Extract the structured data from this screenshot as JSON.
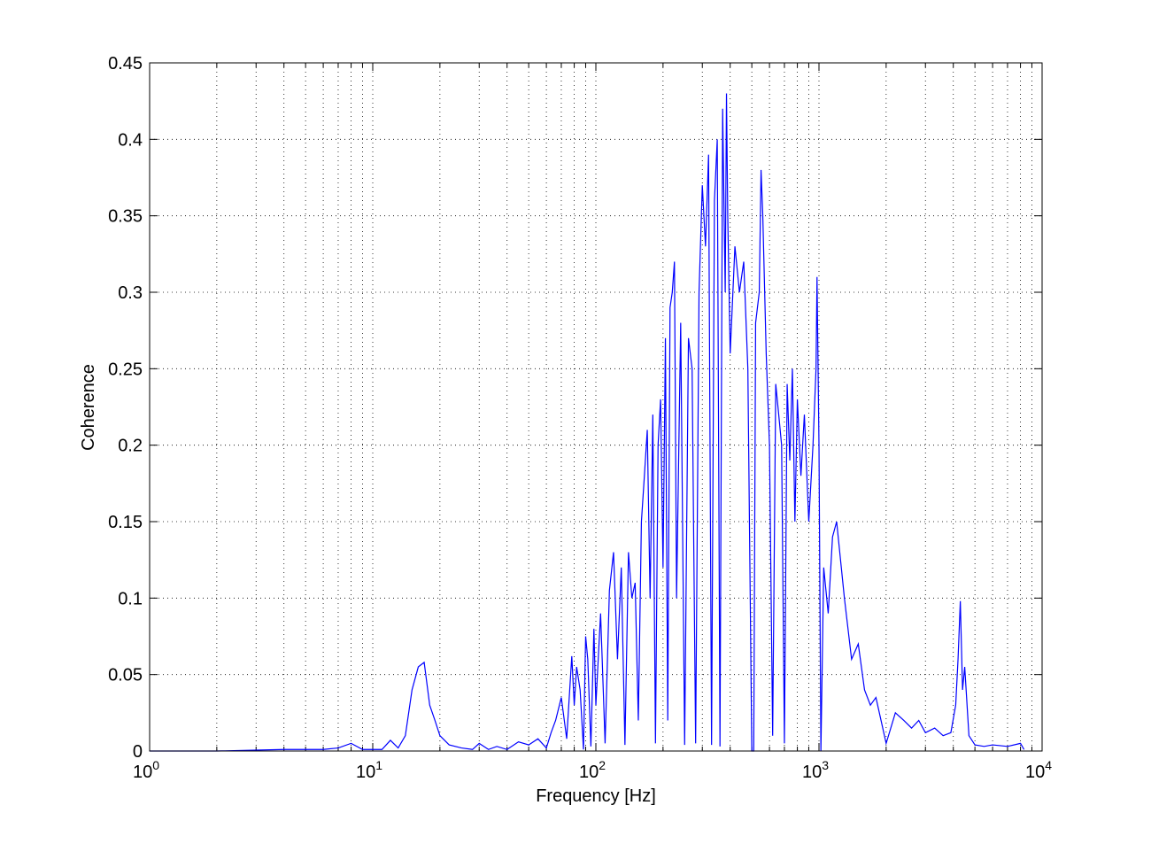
{
  "chart_data": {
    "type": "line",
    "xlabel": "Frequency [Hz]",
    "ylabel": "Coherence",
    "xscale": "log",
    "grid": true,
    "xlim": [
      1,
      10000
    ],
    "ylim": [
      0,
      0.45
    ],
    "xticks": [
      {
        "value": 1,
        "label": "10",
        "exponent": "0"
      },
      {
        "value": 10,
        "label": "10",
        "exponent": "1"
      },
      {
        "value": 100,
        "label": "10",
        "exponent": "2"
      },
      {
        "value": 1000,
        "label": "10",
        "exponent": "3"
      },
      {
        "value": 10000,
        "label": "10",
        "exponent": "4"
      }
    ],
    "xminorticks": [
      2,
      3,
      4,
      5,
      6,
      7,
      8,
      9,
      20,
      30,
      40,
      50,
      60,
      70,
      80,
      90,
      200,
      300,
      400,
      500,
      600,
      700,
      800,
      900,
      2000,
      3000,
      4000,
      5000,
      6000,
      7000,
      8000,
      9000
    ],
    "yticks": [
      0,
      0.05,
      0.1,
      0.15,
      0.2,
      0.25,
      0.3,
      0.35,
      0.4,
      0.45
    ],
    "series": [
      {
        "color": "#0000ff",
        "x": [
          1,
          2,
          4,
          6,
          7,
          8,
          9,
          10,
          11,
          12,
          13,
          14,
          15,
          16,
          17,
          18,
          19,
          20,
          22,
          25,
          28,
          30,
          33,
          36,
          40,
          45,
          50,
          55,
          60,
          63,
          66,
          70,
          74,
          78,
          80,
          82,
          85,
          88,
          90,
          92,
          95,
          98,
          100,
          105,
          110,
          115,
          120,
          125,
          130,
          135,
          140,
          145,
          150,
          155,
          160,
          165,
          170,
          175,
          180,
          185,
          190,
          195,
          200,
          205,
          210,
          215,
          220,
          225,
          230,
          240,
          250,
          260,
          270,
          280,
          290,
          300,
          310,
          320,
          330,
          340,
          350,
          360,
          370,
          380,
          385,
          390,
          400,
          420,
          440,
          460,
          480,
          500,
          510,
          520,
          540,
          550,
          560,
          580,
          600,
          620,
          640,
          660,
          680,
          700,
          720,
          740,
          760,
          780,
          800,
          830,
          860,
          900,
          940,
          970,
          980,
          1000,
          1020,
          1050,
          1100,
          1150,
          1200,
          1300,
          1400,
          1500,
          1600,
          1700,
          1800,
          2000,
          2200,
          2400,
          2600,
          2800,
          3000,
          3300,
          3600,
          3900,
          4100,
          4200,
          4300,
          4400,
          4500,
          4700,
          5000,
          5500,
          6000,
          7000,
          8000,
          8300
        ],
        "values": [
          0,
          0,
          0.001,
          0.001,
          0.002,
          0.005,
          0.001,
          0.001,
          0.001,
          0.007,
          0.002,
          0.01,
          0.04,
          0.055,
          0.058,
          0.03,
          0.02,
          0.01,
          0.004,
          0.002,
          0.001,
          0.005,
          0.001,
          0.003,
          0.001,
          0.006,
          0.004,
          0.008,
          0.002,
          0.012,
          0.02,
          0.035,
          0.008,
          0.062,
          0.03,
          0.055,
          0.04,
          0.001,
          0.075,
          0.06,
          0.003,
          0.08,
          0.03,
          0.09,
          0.005,
          0.105,
          0.13,
          0.06,
          0.12,
          0.004,
          0.13,
          0.1,
          0.11,
          0.02,
          0.15,
          0.18,
          0.21,
          0.1,
          0.22,
          0.005,
          0.2,
          0.23,
          0.12,
          0.27,
          0.02,
          0.29,
          0.3,
          0.32,
          0.1,
          0.28,
          0.004,
          0.27,
          0.25,
          0.005,
          0.3,
          0.37,
          0.33,
          0.39,
          0.004,
          0.36,
          0.4,
          0.003,
          0.42,
          0.3,
          0.43,
          0.35,
          0.26,
          0.33,
          0.3,
          0.32,
          0.25,
          0,
          0,
          0.28,
          0.3,
          0.38,
          0.35,
          0.26,
          0.2,
          0.01,
          0.24,
          0.22,
          0.2,
          0.005,
          0.24,
          0.19,
          0.25,
          0.15,
          0.23,
          0.18,
          0.22,
          0.15,
          0.2,
          0.25,
          0.31,
          0.2,
          0,
          0.12,
          0.09,
          0.14,
          0.15,
          0.1,
          0.06,
          0.07,
          0.04,
          0.03,
          0.035,
          0.005,
          0.025,
          0.02,
          0.015,
          0.02,
          0.012,
          0.015,
          0.01,
          0.012,
          0.03,
          0.06,
          0.098,
          0.04,
          0.055,
          0.01,
          0.004,
          0.003,
          0.004,
          0.003,
          0.005,
          0.001
        ]
      }
    ]
  }
}
